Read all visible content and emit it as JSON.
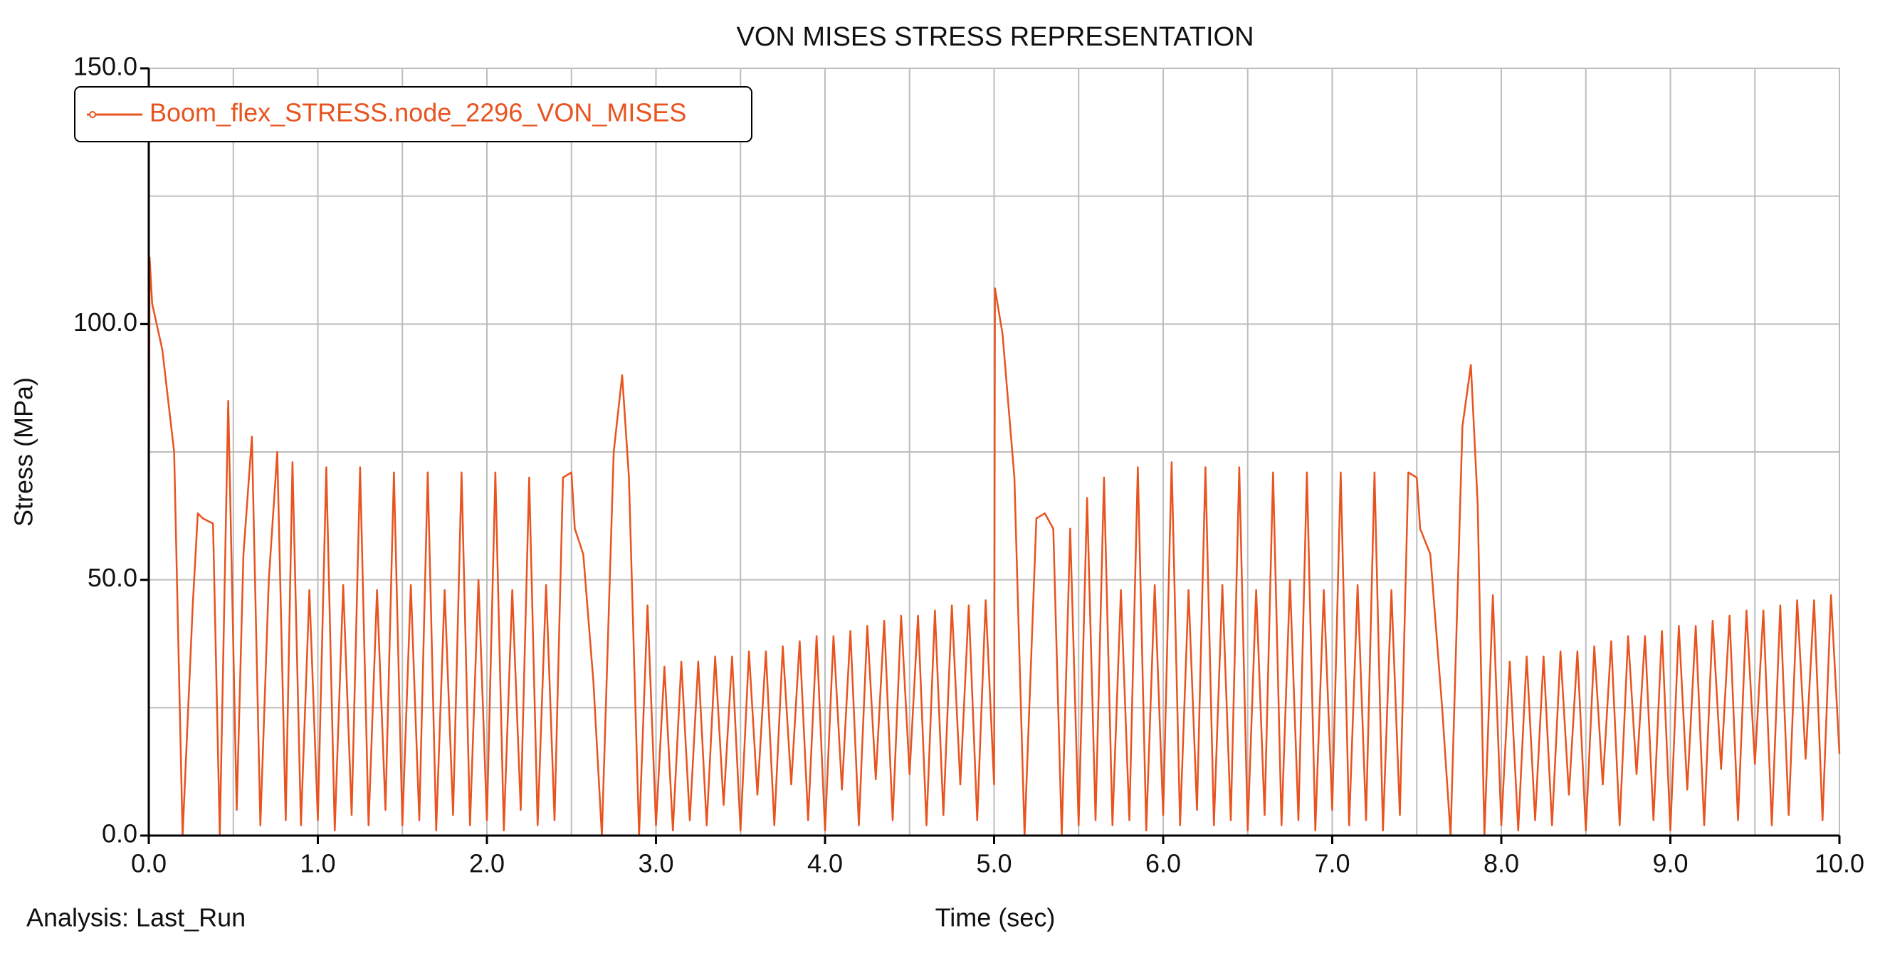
{
  "chart_data": {
    "type": "line",
    "title": "VON MISES STRESS REPRESENTATION",
    "xlabel": "Time (sec)",
    "ylabel": "Stress (MPa)",
    "footer": "Analysis:  Last_Run",
    "xlim": [
      0,
      10
    ],
    "ylim": [
      0,
      150
    ],
    "xticks": [
      {
        "value": 0,
        "label": "0.0"
      },
      {
        "value": 1,
        "label": "1.0"
      },
      {
        "value": 2,
        "label": "2.0"
      },
      {
        "value": 3,
        "label": "3.0"
      },
      {
        "value": 4,
        "label": "4.0"
      },
      {
        "value": 5,
        "label": "5.0"
      },
      {
        "value": 6,
        "label": "6.0"
      },
      {
        "value": 7,
        "label": "7.0"
      },
      {
        "value": 8,
        "label": "8.0"
      },
      {
        "value": 9,
        "label": "9.0"
      },
      {
        "value": 10,
        "label": "10.0"
      }
    ],
    "yticks": [
      {
        "value": 0,
        "label": "0.0"
      },
      {
        "value": 50,
        "label": "50.0"
      },
      {
        "value": 100,
        "label": "100.0"
      },
      {
        "value": 150,
        "label": "150.0"
      }
    ],
    "xgrid": [
      0.5,
      1,
      1.5,
      2,
      2.5,
      3,
      3.5,
      4,
      4.5,
      5,
      5.5,
      6,
      6.5,
      7,
      7.5,
      8,
      8.5,
      9,
      9.5
    ],
    "ygrid": [
      25,
      50,
      75,
      100,
      125
    ],
    "legend": "upper left",
    "x": [
      0,
      0.005,
      0.02,
      0.08,
      0.15,
      0.2,
      0.26,
      0.29,
      0.32,
      0.38,
      0.42,
      0.47,
      0.52,
      0.56,
      0.61,
      0.66,
      0.71,
      0.76,
      0.81,
      0.85,
      0.9,
      0.95,
      1.0,
      1.05,
      1.1,
      1.15,
      1.2,
      1.25,
      1.3,
      1.35,
      1.4,
      1.45,
      1.5,
      1.55,
      1.6,
      1.65,
      1.7,
      1.75,
      1.8,
      1.85,
      1.9,
      1.95,
      2.0,
      2.05,
      2.1,
      2.15,
      2.2,
      2.25,
      2.3,
      2.35,
      2.4,
      2.45,
      2.5,
      2.52,
      2.57,
      2.63,
      2.68,
      2.75,
      2.8,
      2.84,
      2.9,
      2.95,
      3.0,
      3.05,
      3.1,
      3.15,
      3.2,
      3.25,
      3.3,
      3.35,
      3.4,
      3.45,
      3.5,
      3.55,
      3.6,
      3.65,
      3.7,
      3.75,
      3.8,
      3.85,
      3.9,
      3.95,
      4.0,
      4.05,
      4.1,
      4.15,
      4.2,
      4.25,
      4.3,
      4.35,
      4.4,
      4.45,
      4.5,
      4.55,
      4.6,
      4.65,
      4.7,
      4.75,
      4.8,
      4.85,
      4.9,
      4.95,
      5.0,
      5.005,
      5.05,
      5.12,
      5.18,
      5.25,
      5.3,
      5.35,
      5.4,
      5.45,
      5.5,
      5.55,
      5.6,
      5.65,
      5.7,
      5.75,
      5.8,
      5.85,
      5.9,
      5.95,
      6.0,
      6.05,
      6.1,
      6.15,
      6.2,
      6.25,
      6.3,
      6.35,
      6.4,
      6.45,
      6.5,
      6.55,
      6.6,
      6.65,
      6.7,
      6.75,
      6.8,
      6.85,
      6.9,
      6.95,
      7.0,
      7.05,
      7.1,
      7.15,
      7.2,
      7.25,
      7.3,
      7.35,
      7.4,
      7.45,
      7.5,
      7.52,
      7.58,
      7.65,
      7.7,
      7.77,
      7.82,
      7.86,
      7.9,
      7.95,
      8.0,
      8.05,
      8.1,
      8.15,
      8.2,
      8.25,
      8.3,
      8.35,
      8.4,
      8.45,
      8.5,
      8.55,
      8.6,
      8.65,
      8.7,
      8.75,
      8.8,
      8.85,
      8.9,
      8.95,
      9.0,
      9.05,
      9.1,
      9.15,
      9.2,
      9.25,
      9.3,
      9.35,
      9.4,
      9.45,
      9.5,
      9.55,
      9.6,
      9.65,
      9.7,
      9.75,
      9.8,
      9.85,
      9.9,
      9.95,
      10.0
    ],
    "series": [
      {
        "name": "Boom_flex_STRESS.node_2296_VON_MISES",
        "color": "#e8531f",
        "values": [
          56,
          113,
          104,
          95,
          75,
          0,
          45,
          63,
          62,
          61,
          0,
          85,
          5,
          55,
          78,
          2,
          50,
          75,
          3,
          73,
          2,
          48,
          3,
          72,
          1,
          49,
          4,
          72,
          2,
          48,
          5,
          71,
          2,
          49,
          3,
          71,
          1,
          48,
          4,
          71,
          2,
          50,
          3,
          71,
          1,
          48,
          5,
          70,
          2,
          49,
          3,
          70,
          71,
          60,
          55,
          30,
          0,
          75,
          90,
          70,
          0,
          45,
          2,
          33,
          1,
          34,
          3,
          34,
          2,
          35,
          6,
          35,
          1,
          36,
          8,
          36,
          2,
          37,
          10,
          38,
          3,
          39,
          1,
          39,
          9,
          40,
          2,
          41,
          11,
          42,
          3,
          43,
          12,
          43,
          2,
          44,
          4,
          45,
          10,
          45,
          3,
          46,
          10,
          107,
          98,
          70,
          0,
          62,
          63,
          60,
          0,
          60,
          2,
          66,
          3,
          70,
          2,
          48,
          3,
          72,
          1,
          49,
          4,
          73,
          2,
          48,
          5,
          72,
          2,
          49,
          3,
          72,
          1,
          48,
          4,
          71,
          2,
          50,
          3,
          71,
          1,
          48,
          5,
          71,
          2,
          49,
          3,
          71,
          1,
          48,
          4,
          71,
          70,
          60,
          55,
          25,
          0,
          80,
          92,
          65,
          0,
          47,
          2,
          34,
          1,
          35,
          3,
          35,
          2,
          36,
          8,
          36,
          1,
          37,
          10,
          38,
          2,
          39,
          12,
          39,
          3,
          40,
          1,
          41,
          9,
          41,
          2,
          42,
          13,
          43,
          3,
          44,
          14,
          44,
          2,
          45,
          4,
          46,
          15,
          46,
          3,
          47,
          16
        ]
      }
    ]
  }
}
